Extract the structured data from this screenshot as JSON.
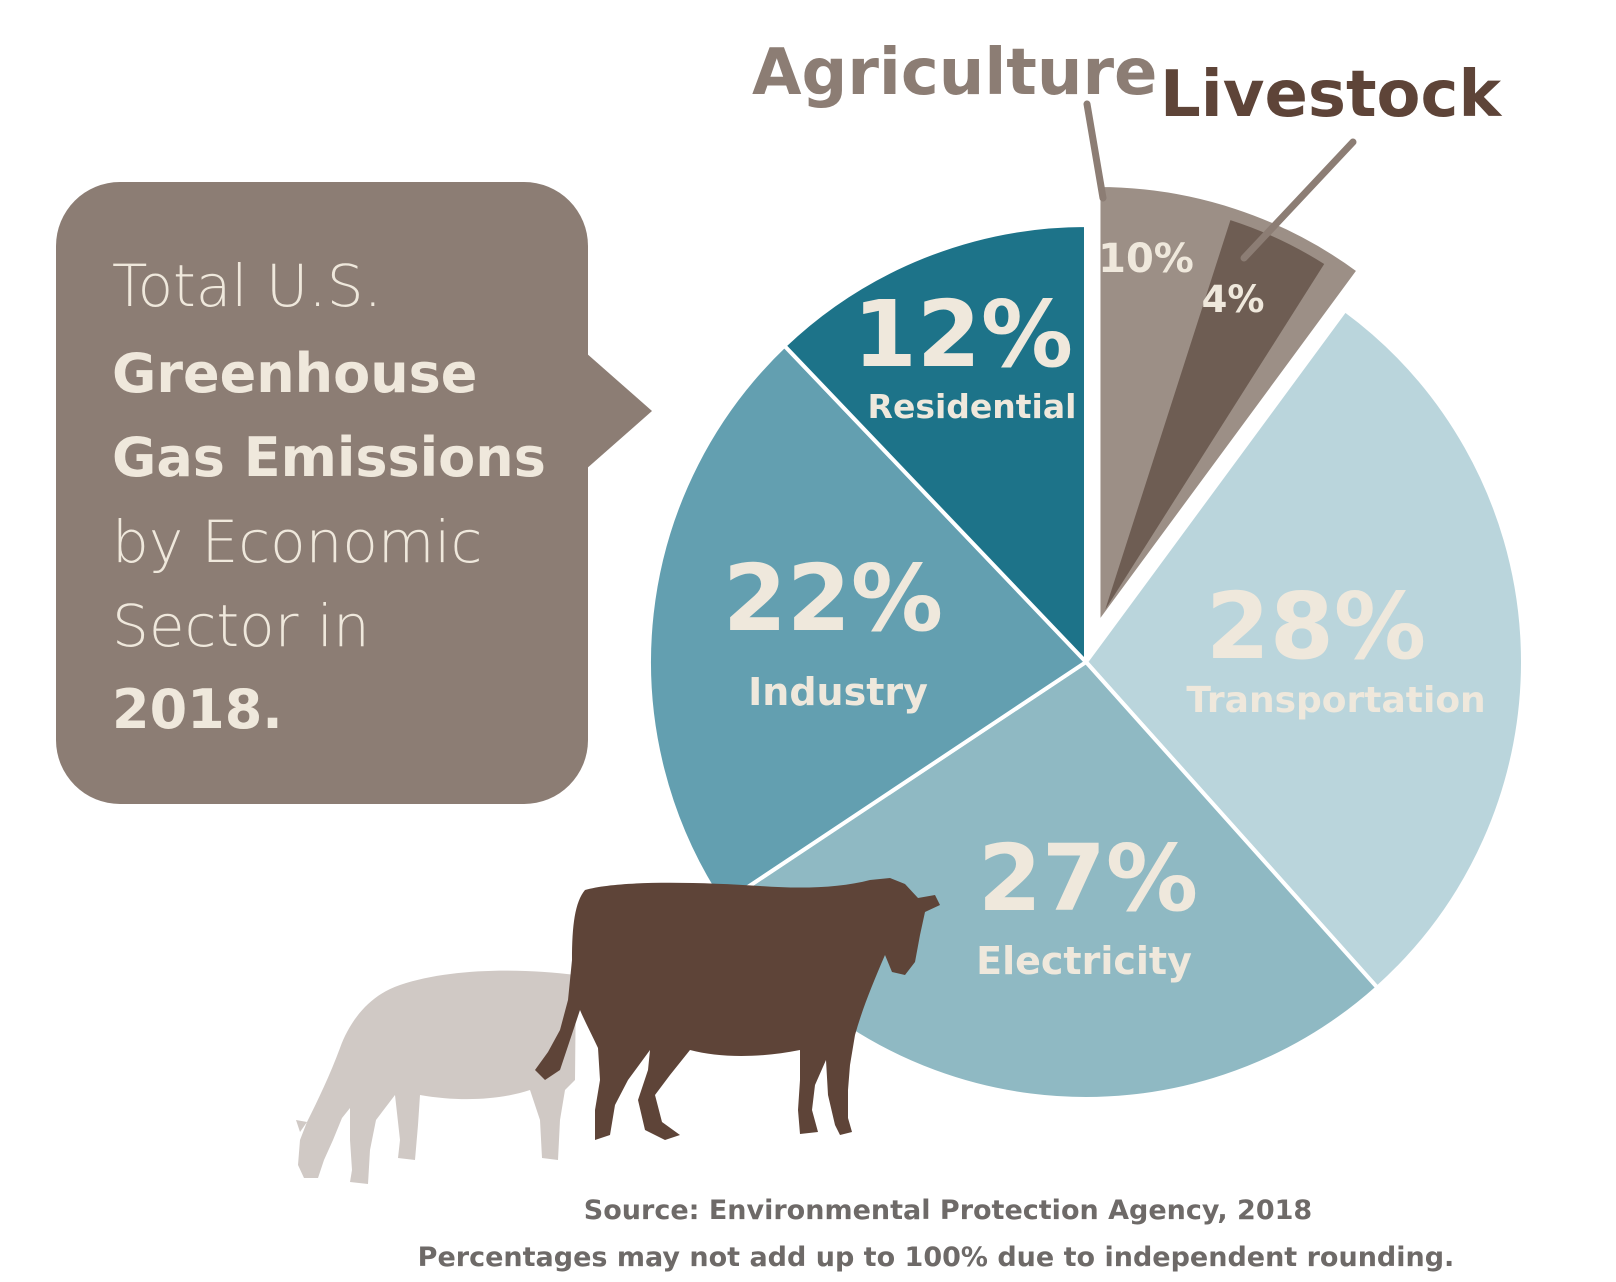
{
  "callout": {
    "line1": "Total U.S.",
    "line2": "Greenhouse",
    "line3": "Gas Emissions",
    "line4": "by Economic",
    "line5": "Sector in",
    "line6": "2018."
  },
  "chart_data": {
    "type": "pie",
    "title": "Total U.S. Greenhouse Gas Emissions by Economic Sector in 2018.",
    "unit": "%",
    "slices": [
      {
        "name": "Agriculture",
        "label": "10%",
        "value": 10,
        "color": "#9c8f86"
      },
      {
        "name": "Transportation",
        "label": "28%",
        "value": 28,
        "color": "#bad5dc"
      },
      {
        "name": "Electricity",
        "label": "27%",
        "value": 27,
        "color": "#8fb9c3"
      },
      {
        "name": "Industry",
        "label": "22%",
        "value": 22,
        "color": "#639fb0"
      },
      {
        "name": "Residential",
        "label": "12%",
        "value": 12,
        "color": "#1d7389"
      }
    ],
    "sub_slice": {
      "name": "Livestock",
      "label": "4%",
      "value": 4,
      "parent": "Agriculture",
      "color": "#6e5d53"
    },
    "callout_titles": {
      "agriculture": "Agriculture",
      "livestock": "Livestock"
    }
  },
  "source": {
    "line1": "Source: Environmental Protection Agency, 2018",
    "line2": "Percentages may not add up to 100% due to independent rounding."
  },
  "colors": {
    "callout_box": "#8c7d74",
    "callout_text": "#efe8dc",
    "cow_dark": "#5e4438",
    "cow_light": "#d0c9c5",
    "source_text": "#6e6a68"
  }
}
